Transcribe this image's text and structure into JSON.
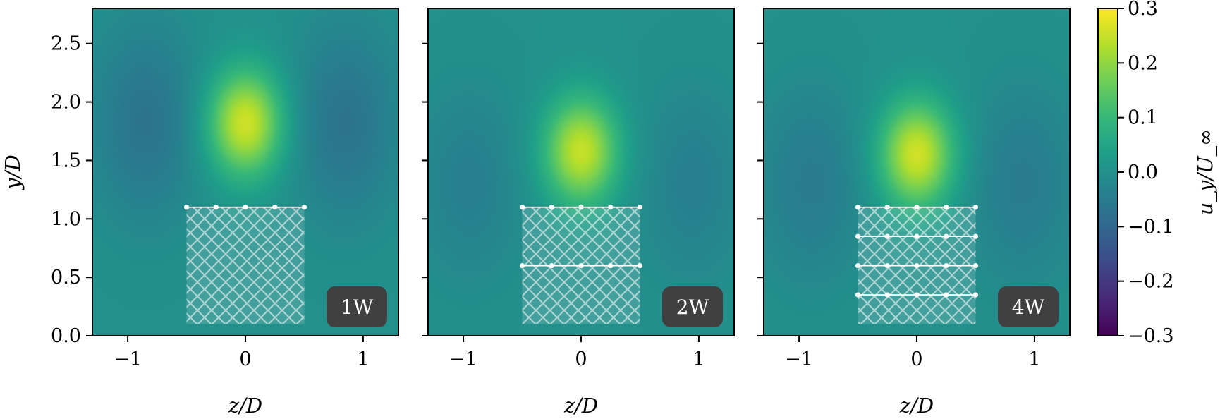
{
  "chart_data": [
    {
      "type": "heatmap",
      "panel_label": "1W",
      "xlabel": "z/D",
      "ylabel": "y/D",
      "xlim": [
        -1.3,
        1.3
      ],
      "ylim": [
        0.0,
        2.8
      ],
      "x_ticks": [
        -1,
        0,
        1
      ],
      "x_tick_labels": [
        "−1",
        "0",
        "1"
      ],
      "y_ticks": [
        0.0,
        0.5,
        1.0,
        1.5,
        2.0,
        2.5
      ],
      "y_tick_labels": [
        "0.0",
        "0.5",
        "1.0",
        "1.5",
        "2.0",
        "2.5"
      ],
      "field_features": [
        {
          "kind": "peak",
          "z": 0.0,
          "y": 1.82,
          "value": 0.26
        },
        {
          "kind": "trough",
          "z": -0.85,
          "y": 1.82,
          "value": -0.07
        },
        {
          "kind": "trough",
          "z": 0.85,
          "y": 1.82,
          "value": -0.07
        }
      ],
      "net": {
        "z_range": [
          -0.5,
          0.5
        ],
        "y_range": [
          0.1,
          1.1
        ],
        "rope_y": [
          1.1
        ],
        "nodes_per_rope": 5
      }
    },
    {
      "type": "heatmap",
      "panel_label": "2W",
      "xlabel": "z/D",
      "ylabel": "",
      "xlim": [
        -1.3,
        1.3
      ],
      "ylim": [
        0.0,
        2.8
      ],
      "x_ticks": [
        -1,
        0,
        1
      ],
      "x_tick_labels": [
        "−1",
        "0",
        "1"
      ],
      "y_ticks": [
        0.0,
        0.5,
        1.0,
        1.5,
        2.0,
        2.5
      ],
      "field_features": [
        {
          "kind": "peak",
          "z": 0.0,
          "y": 1.58,
          "value": 0.25
        },
        {
          "kind": "trough",
          "z": -0.95,
          "y": 1.3,
          "value": -0.04
        },
        {
          "kind": "trough",
          "z": 0.95,
          "y": 1.3,
          "value": -0.04
        }
      ],
      "net": {
        "z_range": [
          -0.5,
          0.5
        ],
        "y_range": [
          0.1,
          1.1
        ],
        "rope_y": [
          1.1,
          0.6
        ],
        "nodes_per_rope": 5
      }
    },
    {
      "type": "heatmap",
      "panel_label": "4W",
      "xlabel": "z/D",
      "ylabel": "",
      "xlim": [
        -1.3,
        1.3
      ],
      "ylim": [
        0.0,
        2.8
      ],
      "x_ticks": [
        -1,
        0,
        1
      ],
      "x_tick_labels": [
        "−1",
        "0",
        "1"
      ],
      "y_ticks": [
        0.0,
        0.5,
        1.0,
        1.5,
        2.0,
        2.5
      ],
      "field_features": [
        {
          "kind": "peak",
          "z": 0.0,
          "y": 1.55,
          "value": 0.26
        },
        {
          "kind": "trough",
          "z": -0.9,
          "y": 1.3,
          "value": -0.05
        },
        {
          "kind": "trough",
          "z": 0.9,
          "y": 1.3,
          "value": -0.05
        }
      ],
      "net": {
        "z_range": [
          -0.5,
          0.5
        ],
        "y_range": [
          0.1,
          1.1
        ],
        "rope_y": [
          1.1,
          0.85,
          0.6,
          0.35
        ],
        "nodes_per_rope": 5
      }
    }
  ],
  "colorbar": {
    "label": "u_y/U_∞",
    "colormap": "viridis",
    "range": [
      -0.3,
      0.3
    ],
    "ticks": [
      0.3,
      0.2,
      0.1,
      0.0,
      -0.1,
      -0.2,
      -0.3
    ],
    "tick_labels": [
      "0.3",
      "0.2",
      "0.1",
      "0.0",
      "−0.1",
      "−0.2",
      "−0.3"
    ]
  },
  "colors": {
    "badge": "#404040",
    "net_fill": "#ffffff",
    "viridis": [
      "#440154",
      "#482878",
      "#3e4989",
      "#31688e",
      "#26828e",
      "#1f9e89",
      "#35b779",
      "#6ece58",
      "#b5de2b",
      "#fde725"
    ]
  }
}
